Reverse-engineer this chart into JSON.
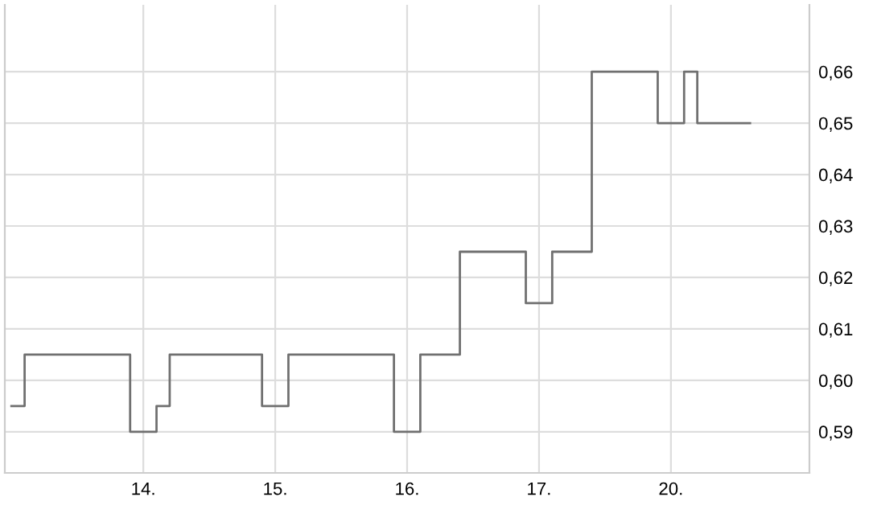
{
  "chart_data": {
    "type": "step",
    "categories": [
      null,
      null,
      null,
      null,
      null,
      null,
      null,
      null,
      null,
      null,
      "14.",
      null,
      null,
      null,
      null,
      null,
      null,
      null,
      null,
      null,
      "15.",
      null,
      null,
      null,
      null,
      null,
      null,
      null,
      null,
      null,
      "16.",
      null,
      null,
      null,
      null,
      null,
      null,
      null,
      null,
      null,
      "17.",
      null,
      null,
      null,
      null,
      null,
      null,
      null,
      null,
      null,
      "20.",
      null,
      null,
      null,
      null,
      null,
      null,
      null,
      null,
      null,
      null
    ],
    "series": [
      {
        "color": "#707070",
        "values": [
          0.595,
          0.605,
          0.605,
          0.605,
          0.605,
          0.605,
          0.605,
          0.605,
          0.605,
          0.59,
          0.59,
          0.595,
          0.605,
          0.605,
          0.605,
          0.605,
          0.605,
          0.605,
          0.605,
          0.595,
          0.595,
          0.605,
          0.605,
          0.605,
          0.605,
          0.605,
          0.605,
          0.605,
          0.605,
          0.59,
          0.59,
          0.605,
          0.605,
          0.605,
          0.625,
          0.625,
          0.625,
          0.625,
          0.625,
          0.615,
          0.615,
          0.625,
          0.625,
          0.625,
          0.66,
          0.66,
          0.66,
          0.66,
          0.66,
          0.65,
          0.65,
          0.66,
          0.65,
          0.65,
          0.65,
          0.65,
          0.65,
          null,
          null,
          null,
          null
        ]
      }
    ],
    "ylim": [
      0.582,
      0.673
    ],
    "yticks": [
      {
        "value": 0.59,
        "label": "0,59"
      },
      {
        "value": 0.6,
        "label": "0,60"
      },
      {
        "value": 0.61,
        "label": "0,61"
      },
      {
        "value": 0.62,
        "label": "0,62"
      },
      {
        "value": 0.63,
        "label": "0,63"
      },
      {
        "value": 0.64,
        "label": "0,64"
      },
      {
        "value": 0.65,
        "label": "0,65"
      },
      {
        "value": 0.66,
        "label": "0,66"
      }
    ],
    "grid": true
  }
}
